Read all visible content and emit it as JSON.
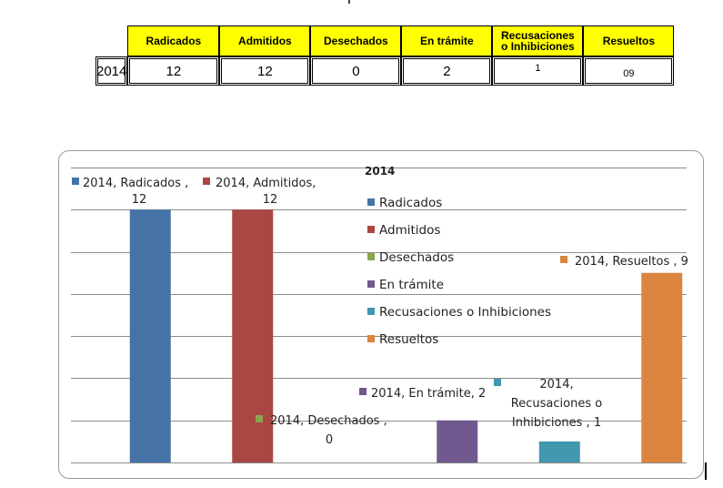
{
  "table": {
    "headers": [
      "Radicados",
      "Admitidos",
      "Desechados",
      "En trámite",
      "Recusaciones\no Inhibiciones",
      "Resueltos"
    ],
    "row_label": "2014",
    "values": [
      "12",
      "12",
      "0",
      "2",
      "1",
      "09"
    ]
  },
  "chart_data": {
    "type": "bar",
    "title": "2014",
    "categories": [
      "2014"
    ],
    "series": [
      {
        "name": "Radicados",
        "values": [
          12
        ],
        "color": "#4573a7",
        "label": "2014, Radicados , 12"
      },
      {
        "name": "Admitidos",
        "values": [
          12
        ],
        "color": "#aa4643",
        "label": "2014, Admitidos, 12"
      },
      {
        "name": "Desechados",
        "values": [
          0
        ],
        "color": "#89a54e",
        "label": "2014, Desechados , 0"
      },
      {
        "name": "En trámite",
        "values": [
          2
        ],
        "color": "#71588f",
        "label": "2014, En trámite, 2"
      },
      {
        "name": "Recusaciones o Inhibiciones",
        "values": [
          1
        ],
        "color": "#4198af",
        "label": "2014, Recusaciones o Inhibiciones , 1"
      },
      {
        "name": "Resueltos",
        "values": [
          9
        ],
        "color": "#db843d",
        "label": "2014, Resueltos , 9"
      }
    ],
    "ylim": [
      0,
      14
    ],
    "grid": true,
    "axis_tick_labels": false,
    "legend_position": "top-center"
  }
}
